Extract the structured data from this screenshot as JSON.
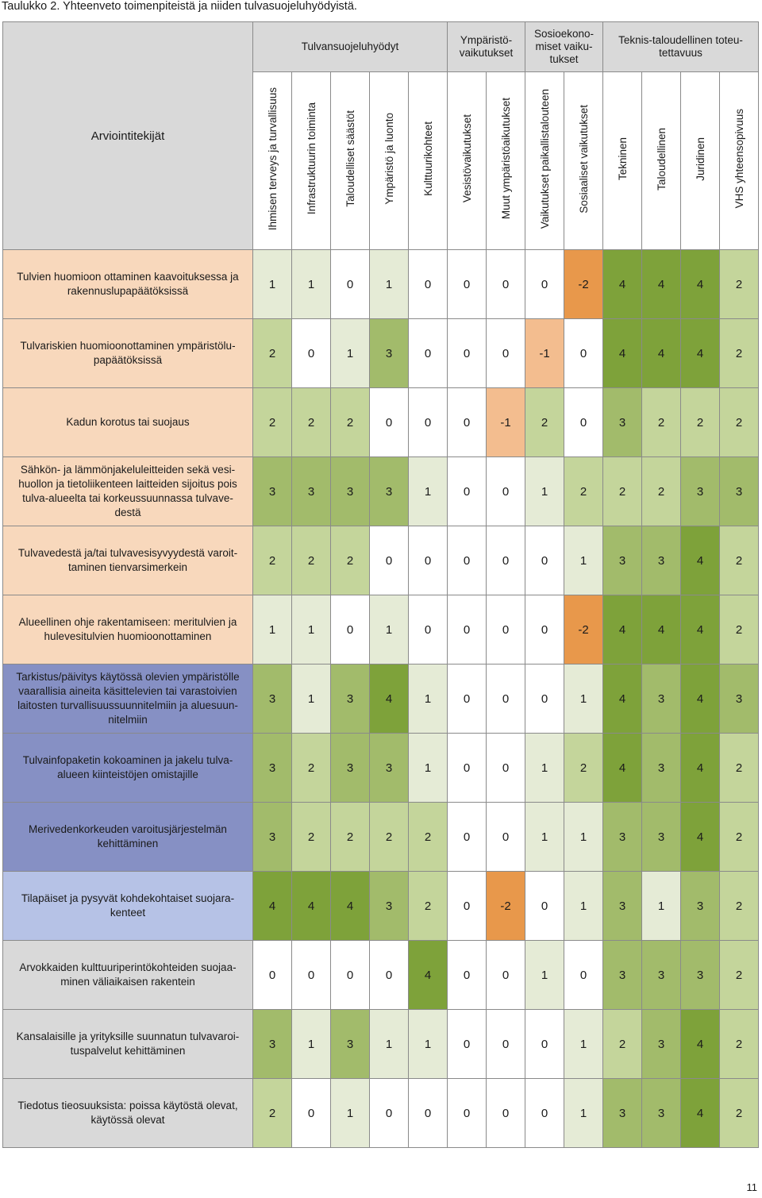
{
  "caption": "Taulukko 2. Yhteenveto toimenpiteistä ja niiden tulvasuojeluhyödyistä.",
  "page_number": "11",
  "header": {
    "corner": "Arviointitekijät",
    "groups": [
      "Tulvansuojeluhyödyt",
      "Ympäristö- vaikutukset",
      "Sosioekono- miset vaiku- tukset",
      "Teknis-taloudellinen toteu- tettavuus"
    ],
    "columns": [
      "Ihmisen terveys ja turvallisuus",
      "Infrastruktuurin toiminta",
      "Taloudelliset säästöt",
      "Ympäristö ja luonto",
      "Kulttuurikohteet",
      "Vesistövaikutukset",
      "Muut ympäristöaikutukset",
      "Vaikutukset paikallistalouteen",
      "Sosiaaliset vaikutukset",
      "Tekninen",
      "Taloudellinen",
      "Juridinen",
      "VHS yhteensopivuus"
    ]
  },
  "rows": [
    {
      "label": "Tulvien huomioon ottaminen kaavoituksessa ja rakennuslupapäätöksissä",
      "values": [
        "1",
        "1",
        "0",
        "1",
        "0",
        "0",
        "0",
        "0",
        "-2",
        "4",
        "4",
        "4",
        "2"
      ]
    },
    {
      "label": "Tulvariskien huomioonottaminen ympäristölu- papäätöksissä",
      "values": [
        "2",
        "0",
        "1",
        "3",
        "0",
        "0",
        "0",
        "-1",
        "0",
        "4",
        "4",
        "4",
        "2"
      ]
    },
    {
      "label": "Kadun korotus tai suojaus",
      "values": [
        "2",
        "2",
        "2",
        "0",
        "0",
        "0",
        "-1",
        "2",
        "0",
        "3",
        "2",
        "2",
        "2"
      ]
    },
    {
      "label": "Sähkön- ja lämmönjakeluleitteiden sekä vesi- huollon ja tietoliikenteen laitteiden sijoitus pois tulva-alueelta tai korkeussuunnassa tulvave- destä",
      "values": [
        "3",
        "3",
        "3",
        "3",
        "1",
        "0",
        "0",
        "1",
        "2",
        "2",
        "2",
        "3",
        "3"
      ]
    },
    {
      "label": "Tulvavedestä ja/tai tulvavesisyvyydestä varoit- taminen tienvarsimerkein",
      "values": [
        "2",
        "2",
        "2",
        "0",
        "0",
        "0",
        "0",
        "0",
        "1",
        "3",
        "3",
        "4",
        "2"
      ]
    },
    {
      "label": "Alueellinen ohje rakentamiseen: meritulvien ja hulevesitulvien huomioonottaminen",
      "values": [
        "1",
        "1",
        "0",
        "1",
        "0",
        "0",
        "0",
        "0",
        "-2",
        "4",
        "4",
        "4",
        "2"
      ]
    },
    {
      "label": "Tarkistus/päivitys käytössä olevien ympäristölle vaarallisia aineita käsittelevien tai varastoivien laitosten turvallisuussuunnitelmiin ja aluesuun- nitelmiin",
      "values": [
        "3",
        "1",
        "3",
        "4",
        "1",
        "0",
        "0",
        "0",
        "1",
        "4",
        "3",
        "4",
        "3"
      ]
    },
    {
      "label": "Tulvainfopaketin kokoaminen ja jakelu tulva- alueen kiinteistöjen omistajille",
      "values": [
        "3",
        "2",
        "3",
        "3",
        "1",
        "0",
        "0",
        "1",
        "2",
        "4",
        "3",
        "4",
        "2"
      ]
    },
    {
      "label": "Merivedenkorkeuden varoitusjärjestelmän kehittäminen",
      "values": [
        "3",
        "2",
        "2",
        "2",
        "2",
        "0",
        "0",
        "1",
        "1",
        "3",
        "3",
        "4",
        "2"
      ]
    },
    {
      "label": "Tilapäiset ja pysyvät kohdekohtaiset suojara- kenteet",
      "values": [
        "4",
        "4",
        "4",
        "3",
        "2",
        "0",
        "-2",
        "0",
        "1",
        "3",
        "1",
        "3",
        "2"
      ]
    },
    {
      "label": "Arvokkaiden kulttuuriperintökohteiden suojaa- minen väliaikaisen rakentein",
      "values": [
        "0",
        "0",
        "0",
        "0",
        "4",
        "0",
        "0",
        "1",
        "0",
        "3",
        "3",
        "3",
        "2"
      ]
    },
    {
      "label": "Kansalaisille ja yrityksille suunnatun tulvavaroi- tuspalvelut kehittäminen",
      "values": [
        "3",
        "1",
        "3",
        "1",
        "1",
        "0",
        "0",
        "0",
        "1",
        "2",
        "3",
        "4",
        "2"
      ]
    },
    {
      "label": "Tiedotus tieosuuksista: poissa käytöstä olevat, käytössä olevat",
      "values": [
        "2",
        "0",
        "1",
        "0",
        "0",
        "0",
        "0",
        "0",
        "1",
        "3",
        "3",
        "4",
        "2"
      ]
    }
  ],
  "colors": {
    "score_-2": "#e8984b",
    "score_-1": "#f3bd8f",
    "score_0": "#ffffff",
    "score_1": "#e5ebd6",
    "score_2": "#c4d59b",
    "score_3": "#a2bb6b",
    "score_4": "#7ea23a",
    "label_peach": "#f8d8bc",
    "label_slate": "#8690c4",
    "label_blue": "#b6c2e6",
    "label_gray": "#d9d9d9"
  }
}
